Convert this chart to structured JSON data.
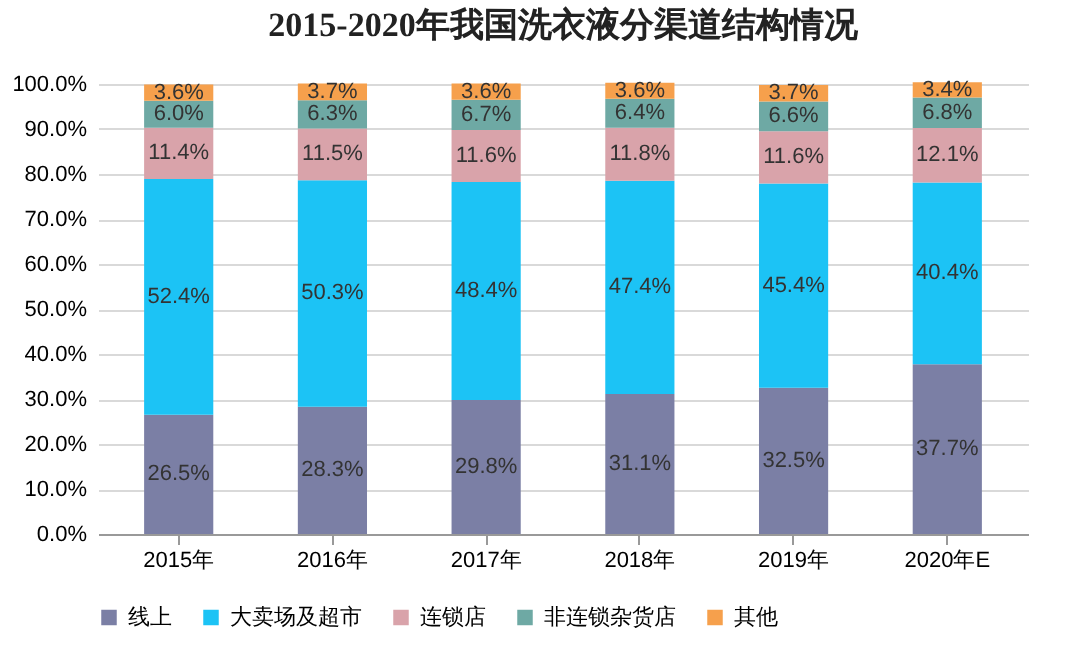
{
  "chart_data": {
    "type": "bar",
    "stacked": true,
    "title": "2015-2020年我国洗衣液分渠道结构情况",
    "categories": [
      "2015年",
      "2016年",
      "2017年",
      "2018年",
      "2019年",
      "2020年E"
    ],
    "series": [
      {
        "name": "线上",
        "color": "#7b7fa5",
        "values": [
          26.5,
          28.3,
          29.8,
          31.1,
          32.5,
          37.7
        ],
        "value_labels": [
          "26.5%",
          "28.3%",
          "29.8%",
          "31.1%",
          "32.5%",
          "37.7%"
        ]
      },
      {
        "name": "大卖场及超市",
        "color": "#1cc3f5",
        "values": [
          52.4,
          50.3,
          48.4,
          47.4,
          45.4,
          40.4
        ],
        "value_labels": [
          "52.4%",
          "50.3%",
          "48.4%",
          "47.4%",
          "45.4%",
          "40.4%"
        ]
      },
      {
        "name": "连锁店",
        "color": "#d9a3aa",
        "values": [
          11.4,
          11.5,
          11.6,
          11.8,
          11.6,
          12.1
        ],
        "value_labels": [
          "11.4%",
          "11.5%",
          "11.6%",
          "11.8%",
          "11.6%",
          "12.1%"
        ]
      },
      {
        "name": "非连锁杂货店",
        "color": "#6ea9a4",
        "values": [
          6.0,
          6.3,
          6.7,
          6.4,
          6.6,
          6.8
        ],
        "value_labels": [
          "6.0%",
          "6.3%",
          "6.7%",
          "6.4%",
          "6.6%",
          "6.8%"
        ]
      },
      {
        "name": "其他",
        "color": "#f6a04c",
        "values": [
          3.6,
          3.7,
          3.6,
          3.6,
          3.7,
          3.4
        ],
        "value_labels": [
          "3.6%",
          "3.7%",
          "3.6%",
          "3.6%",
          "3.7%",
          "3.4%"
        ]
      }
    ],
    "ylim": [
      0,
      100
    ],
    "yticks": [
      {
        "value": 0,
        "label": "0.0%"
      },
      {
        "value": 10,
        "label": "10.0%"
      },
      {
        "value": 20,
        "label": "20.0%"
      },
      {
        "value": 30,
        "label": "30.0%"
      },
      {
        "value": 40,
        "label": "40.0%"
      },
      {
        "value": 50,
        "label": "50.0%"
      },
      {
        "value": 60,
        "label": "60.0%"
      },
      {
        "value": 70,
        "label": "70.0%"
      },
      {
        "value": 80,
        "label": "80.0%"
      },
      {
        "value": 90,
        "label": "90.0%"
      },
      {
        "value": 100,
        "label": "100.0%"
      }
    ],
    "grid": "y",
    "legend": "bottom"
  }
}
